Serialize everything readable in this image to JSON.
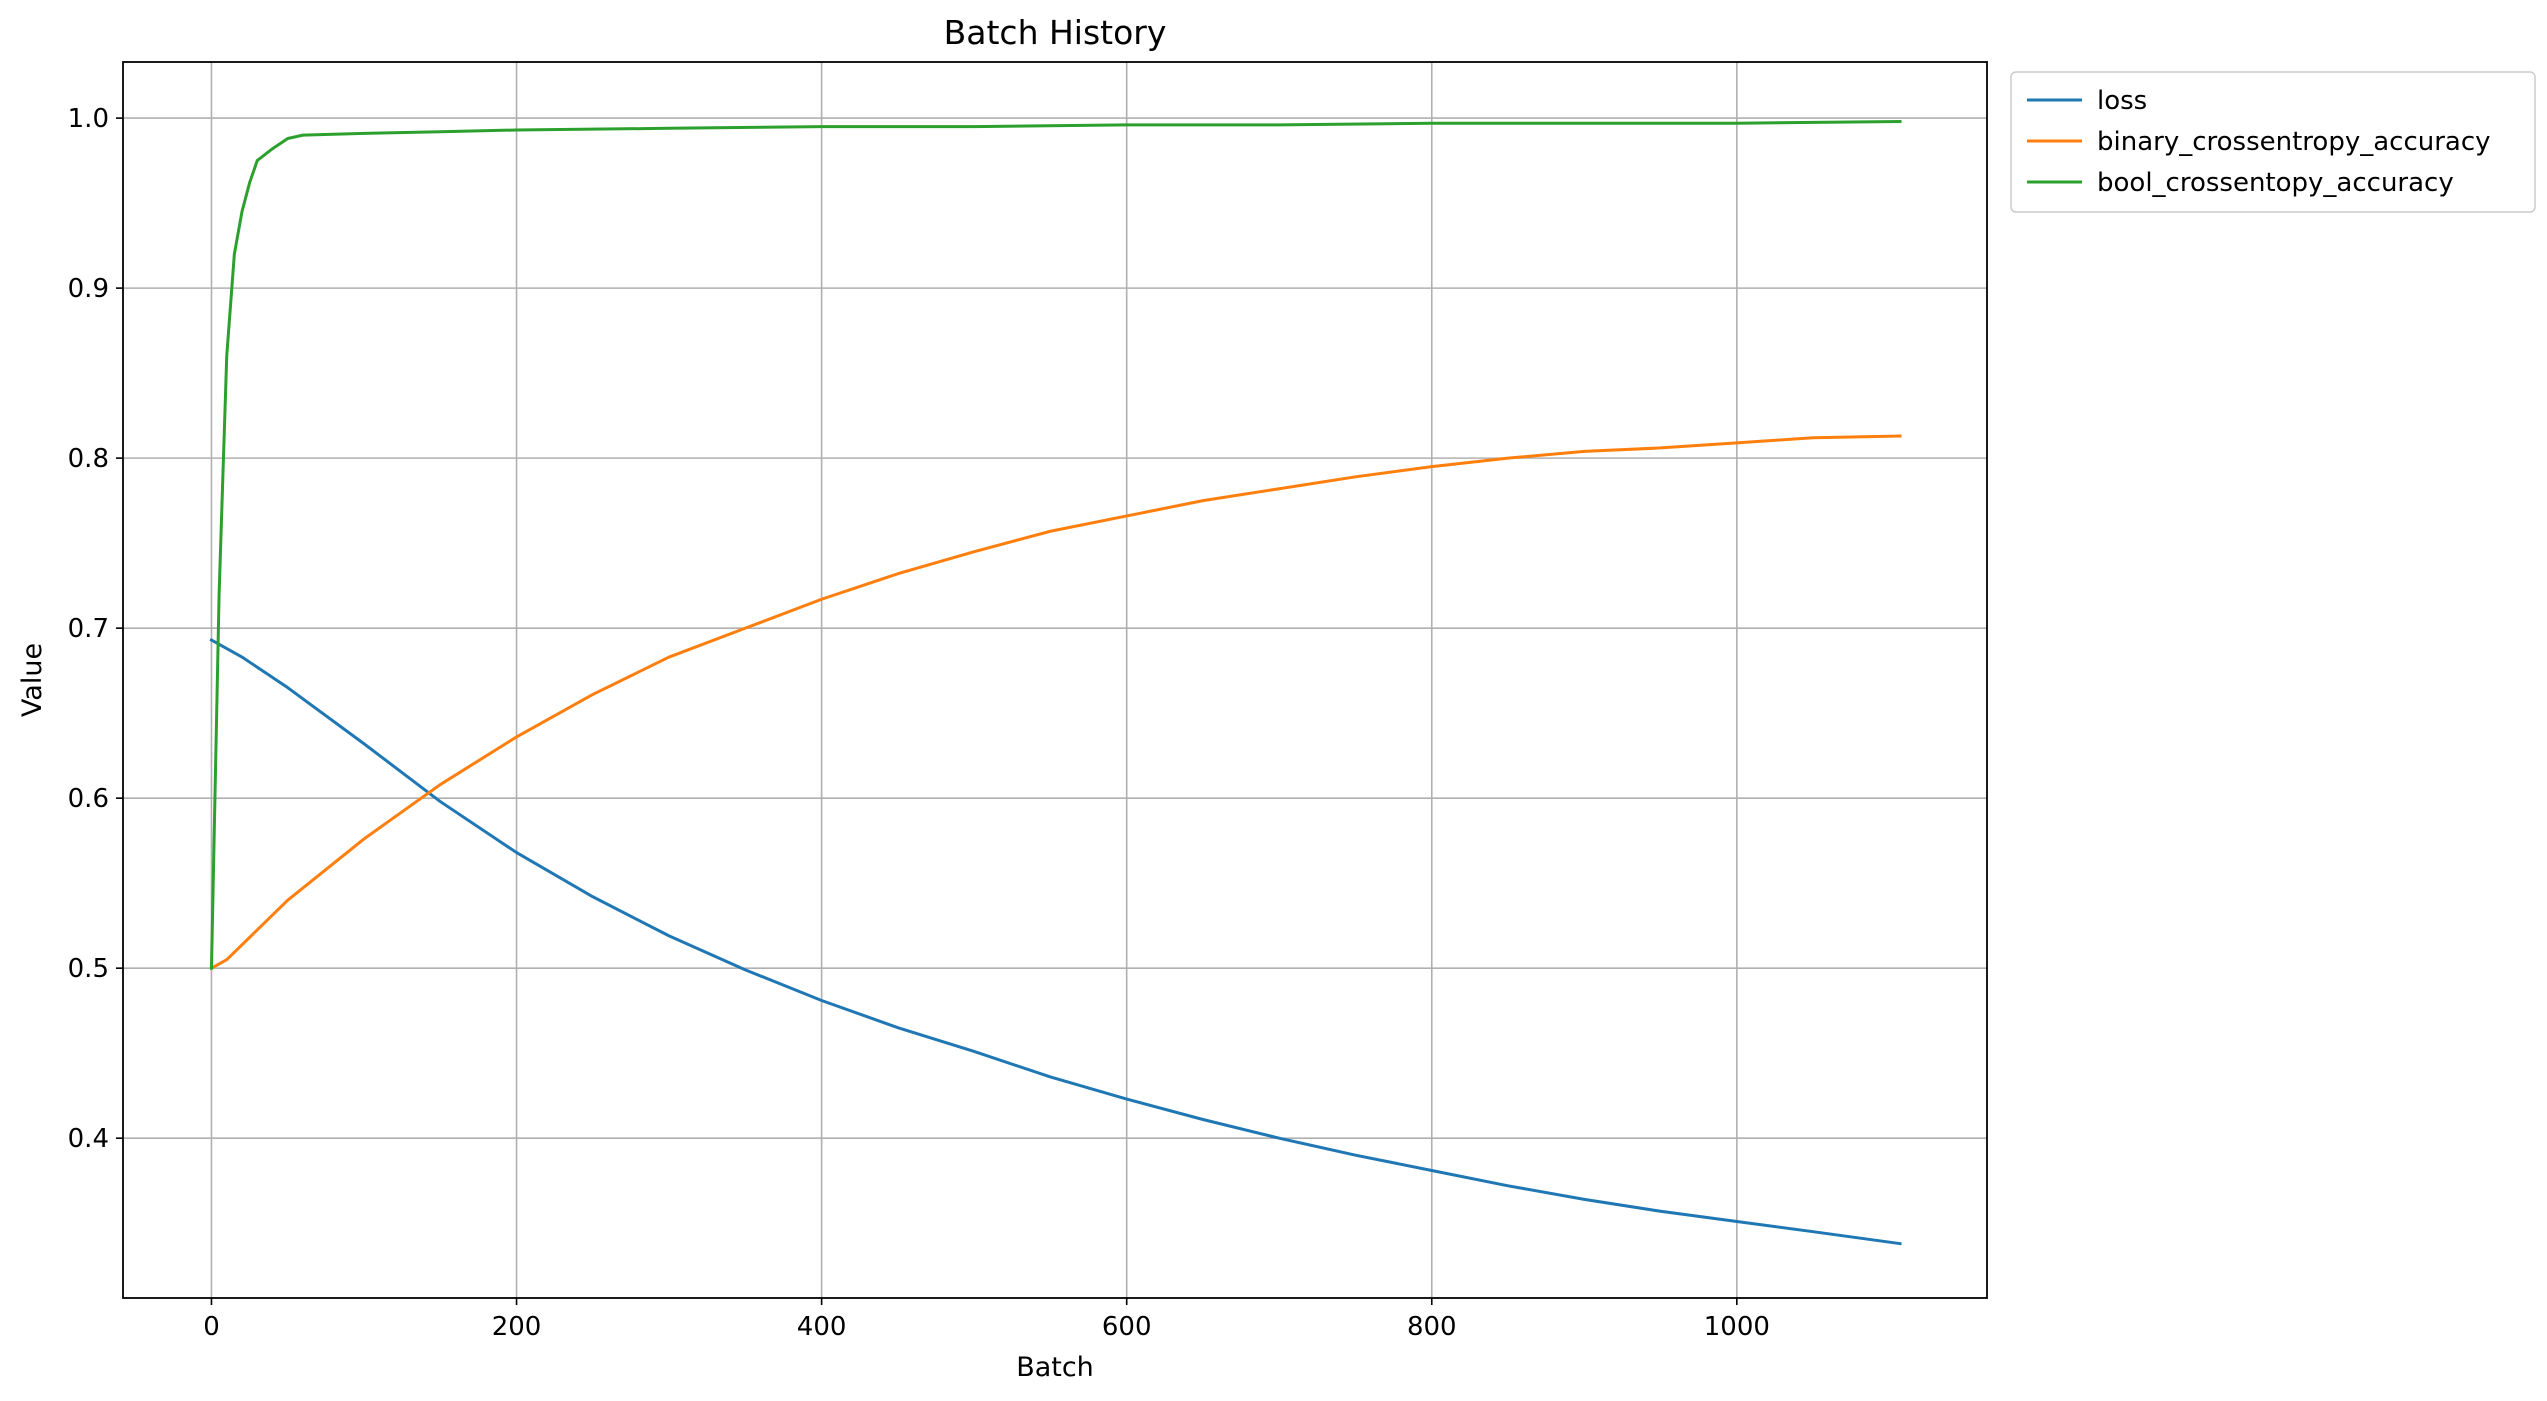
{
  "chart_data": {
    "type": "line",
    "title": "Batch History",
    "xlabel": "Batch",
    "ylabel": "Value",
    "xlim": [
      -58,
      1164
    ],
    "ylim": [
      0.306,
      1.033
    ],
    "xticks": [
      0,
      200,
      400,
      600,
      800,
      1000
    ],
    "yticks": [
      0.4,
      0.5,
      0.6,
      0.7,
      0.8,
      0.9,
      1.0
    ],
    "xtick_labels": [
      "0",
      "200",
      "400",
      "600",
      "800",
      "1000"
    ],
    "ytick_labels": [
      "0.4",
      "0.5",
      "0.6",
      "0.7",
      "0.8",
      "0.9",
      "1.0"
    ],
    "grid": true,
    "legend_position": "outside-top-right",
    "series": [
      {
        "name": "loss",
        "color": "#1f77b4",
        "x": [
          0,
          20,
          50,
          100,
          150,
          200,
          250,
          300,
          350,
          400,
          450,
          500,
          550,
          600,
          650,
          700,
          750,
          800,
          850,
          900,
          950,
          1000,
          1050,
          1107
        ],
        "y": [
          0.693,
          0.683,
          0.665,
          0.632,
          0.598,
          0.568,
          0.542,
          0.519,
          0.499,
          0.481,
          0.465,
          0.451,
          0.436,
          0.423,
          0.411,
          0.4,
          0.39,
          0.381,
          0.372,
          0.364,
          0.357,
          0.351,
          0.345,
          0.338
        ]
      },
      {
        "name": "binary_crossentropy_accuracy",
        "color": "#ff7f0e",
        "x": [
          0,
          10,
          50,
          100,
          150,
          200,
          250,
          300,
          350,
          400,
          450,
          500,
          550,
          600,
          650,
          700,
          750,
          800,
          850,
          900,
          950,
          1000,
          1050,
          1107
        ],
        "y": [
          0.5,
          0.505,
          0.54,
          0.576,
          0.608,
          0.636,
          0.661,
          0.683,
          0.7,
          0.717,
          0.732,
          0.745,
          0.757,
          0.766,
          0.775,
          0.782,
          0.789,
          0.795,
          0.8,
          0.804,
          0.806,
          0.809,
          0.812,
          0.813
        ]
      },
      {
        "name": "bool_crossentopy_accuracy",
        "color": "#2ca02c",
        "x": [
          0,
          5,
          10,
          15,
          20,
          25,
          30,
          40,
          50,
          60,
          100,
          150,
          200,
          300,
          400,
          500,
          600,
          700,
          800,
          900,
          1000,
          1107
        ],
        "y": [
          0.5,
          0.72,
          0.86,
          0.92,
          0.945,
          0.962,
          0.975,
          0.982,
          0.988,
          0.99,
          0.991,
          0.992,
          0.993,
          0.994,
          0.995,
          0.995,
          0.996,
          0.996,
          0.997,
          0.997,
          0.997,
          0.998
        ]
      }
    ]
  }
}
